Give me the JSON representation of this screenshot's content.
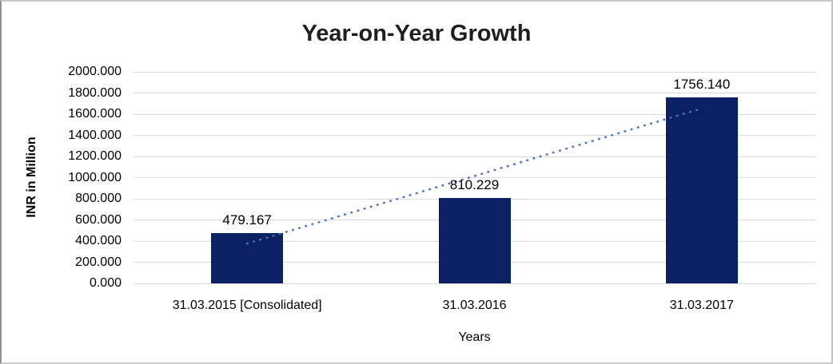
{
  "chart_data": {
    "type": "bar",
    "title": "Year-on-Year Growth",
    "categories": [
      "31.03.2015 [Consolidated]",
      "31.03.2016",
      "31.03.2017"
    ],
    "values": [
      479.167,
      810.229,
      1756.14
    ],
    "value_labels": [
      "479.167",
      "810.229",
      "1756.140"
    ],
    "xlabel": "Years",
    "ylabel": "INR in Million",
    "ylim": [
      0,
      2000
    ],
    "ytick_step": 200,
    "ytick_decimals": 3,
    "grid": "horizontal",
    "legend": "none",
    "trendline": {
      "type": "linear",
      "style": "dotted",
      "color": "#4472c4"
    },
    "colors": {
      "bar": "#0a2264",
      "gridline": "#d9d9d9",
      "title_text": "#1f1f1f",
      "axis_text": "#000000",
      "background": "#ffffff"
    }
  }
}
